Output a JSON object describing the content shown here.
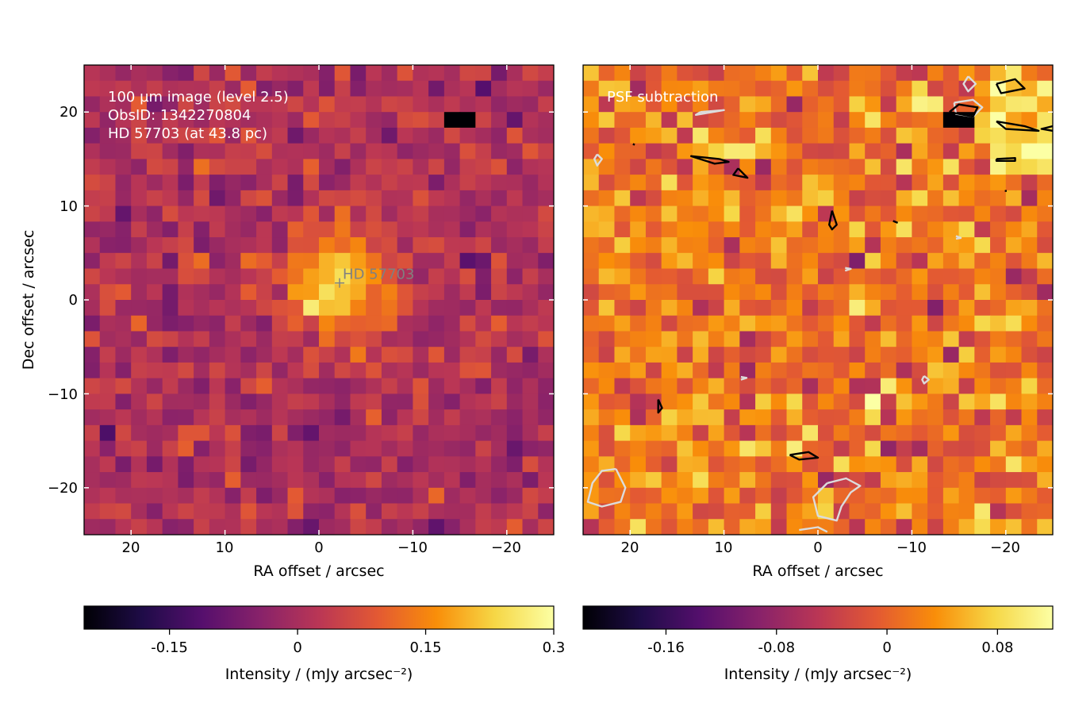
{
  "chart_data": [
    {
      "type": "heatmap",
      "panel": "left",
      "annotation_lines": [
        "100 µm image (level 2.5)",
        "ObsID: 1342270804",
        "HD 57703 (at 43.8 pc)"
      ],
      "star_label": "HD 57703",
      "star_offset": [
        -2.2,
        1.8
      ],
      "bright_spot_offset": [
        0,
        0
      ],
      "xlabel": "RA offset / arcsec",
      "ylabel": "Dec offset / arcsec",
      "xlim": [
        25,
        -25
      ],
      "ylim": [
        -25,
        25
      ],
      "xticks": [
        20,
        10,
        0,
        -10,
        -20
      ],
      "xtick_labels": [
        "20",
        "10",
        "0",
        "−10",
        "−20"
      ],
      "yticks": [
        20,
        10,
        0,
        -10,
        -20
      ],
      "ytick_labels": [
        "20",
        "10",
        "0",
        "−10",
        "−20"
      ],
      "grid_cells": 30,
      "colormap": "inferno",
      "vmin": -0.25,
      "vmax": 0.3,
      "colorbar_label": "Intensity / (mJy arcsec⁻²)",
      "colorbar_ticks": [
        -0.15,
        0,
        0.15,
        0.3
      ],
      "colorbar_tick_labels": [
        "-0.15",
        "0",
        "0.15",
        "0.3"
      ]
    },
    {
      "type": "heatmap",
      "panel": "right",
      "annotation_lines": [
        "PSF subtraction"
      ],
      "xlabel": "RA offset / arcsec",
      "xlim": [
        25,
        -25
      ],
      "ylim": [
        -25,
        25
      ],
      "xticks": [
        20,
        10,
        0,
        -10,
        -20
      ],
      "xtick_labels": [
        "20",
        "10",
        "0",
        "−10",
        "−20"
      ],
      "grid_cells": 30,
      "colormap": "inferno",
      "vmin": -0.22,
      "vmax": 0.12,
      "colorbar_label": "Intensity / (mJy arcsec⁻²)",
      "colorbar_ticks": [
        -0.16,
        -0.08,
        0,
        0.08
      ],
      "colorbar_tick_labels": [
        "-0.16",
        "-0.08",
        "0",
        "0.08"
      ],
      "contours_positive": [
        [
          [
            -19,
            23
          ],
          [
            -21,
            23.5
          ],
          [
            -22,
            22.5
          ],
          [
            -19.5,
            22
          ],
          [
            -19,
            23
          ]
        ],
        [
          [
            -19,
            19
          ],
          [
            -22,
            18.5
          ],
          [
            -23.5,
            18
          ],
          [
            -20,
            18.2
          ],
          [
            -19,
            19
          ]
        ],
        [
          [
            -25,
            18.5
          ],
          [
            -23.8,
            18.2
          ],
          [
            -25,
            18
          ]
        ],
        [
          [
            -19,
            15
          ],
          [
            -21,
            15.1
          ],
          [
            -21,
            14.8
          ],
          [
            -19,
            14.8
          ],
          [
            -19,
            15
          ]
        ],
        [
          [
            10.5,
            15
          ],
          [
            13.5,
            15.3
          ],
          [
            11,
            14.5
          ],
          [
            9.5,
            14.7
          ],
          [
            10.5,
            15
          ]
        ],
        [
          [
            8.5,
            14
          ],
          [
            7.5,
            13
          ],
          [
            9,
            13.3
          ],
          [
            8.5,
            14
          ]
        ],
        [
          [
            -1.5,
            9.5
          ],
          [
            -2,
            8
          ],
          [
            -1.5,
            7.5
          ],
          [
            -1.2,
            8
          ],
          [
            -1.5,
            9.5
          ]
        ],
        [
          [
            17,
            -10.6
          ],
          [
            16.6,
            -11.5
          ],
          [
            17,
            -12
          ],
          [
            17,
            -10.6
          ]
        ],
        [
          [
            3,
            -16.5
          ],
          [
            1,
            -16.2
          ],
          [
            0,
            -16.8
          ],
          [
            2,
            -17
          ],
          [
            3,
            -16.5
          ]
        ],
        [
          [
            -14,
            20
          ],
          [
            -16.5,
            19.5
          ],
          [
            -17,
            20.5
          ],
          [
            -15,
            20.8
          ],
          [
            -14,
            20
          ]
        ],
        [
          [
            19.7,
            16.6
          ],
          [
            19.5,
            16.5
          ]
        ],
        [
          [
            -20,
            11.7
          ],
          [
            -20,
            11.5
          ]
        ],
        [
          [
            -8,
            8.4
          ],
          [
            -8.5,
            8.2
          ]
        ]
      ],
      "contours_negative": [
        [
          [
            -16,
            23.8
          ],
          [
            -16.8,
            23
          ],
          [
            -16,
            22.2
          ],
          [
            -15.5,
            23
          ],
          [
            -16,
            23.8
          ]
        ],
        [
          [
            -14.5,
            21
          ],
          [
            -16.5,
            21.3
          ],
          [
            -17.5,
            20.5
          ],
          [
            -16.5,
            19.5
          ],
          [
            -14.7,
            19.8
          ],
          [
            -14.5,
            21
          ]
        ],
        [
          [
            23.5,
            15.5
          ],
          [
            23,
            15
          ],
          [
            23.5,
            14.3
          ],
          [
            23.8,
            15
          ],
          [
            23.5,
            15.5
          ]
        ],
        [
          [
            12.5,
            20
          ],
          [
            10,
            20.2
          ],
          [
            13,
            19.7
          ],
          [
            12.5,
            20
          ]
        ],
        [
          [
            -14.7,
            6.8
          ],
          [
            -15.2,
            6.6
          ],
          [
            -14.7,
            6.5
          ]
        ],
        [
          [
            -2.9,
            3.4
          ],
          [
            -3.5,
            3.3
          ],
          [
            -2.9,
            3.1
          ]
        ],
        [
          [
            8.2,
            -8.2
          ],
          [
            7.6,
            -8.3
          ],
          [
            8.2,
            -8.5
          ]
        ],
        [
          [
            -11.3,
            -8.1
          ],
          [
            -11.8,
            -8.5
          ],
          [
            -11.3,
            -8.9
          ],
          [
            -11.1,
            -8.5
          ],
          [
            -11.3,
            -8.1
          ]
        ],
        [
          [
            21.5,
            -18
          ],
          [
            20.5,
            -20
          ],
          [
            21,
            -21.5
          ],
          [
            23,
            -22
          ],
          [
            24.5,
            -21.5
          ],
          [
            24,
            -19.5
          ],
          [
            23,
            -18.2
          ],
          [
            21.5,
            -18
          ]
        ],
        [
          [
            -1,
            -19.5
          ],
          [
            -3,
            -19
          ],
          [
            -4.5,
            -19.8
          ],
          [
            -3.5,
            -20.5
          ],
          [
            -2.5,
            -22
          ],
          [
            -2,
            -23.5
          ],
          [
            0,
            -23
          ],
          [
            0.5,
            -21
          ],
          [
            -1,
            -19.5
          ]
        ],
        [
          [
            2,
            -24.5
          ],
          [
            0,
            -24.2
          ],
          [
            -1,
            -24.7
          ]
        ]
      ]
    }
  ]
}
